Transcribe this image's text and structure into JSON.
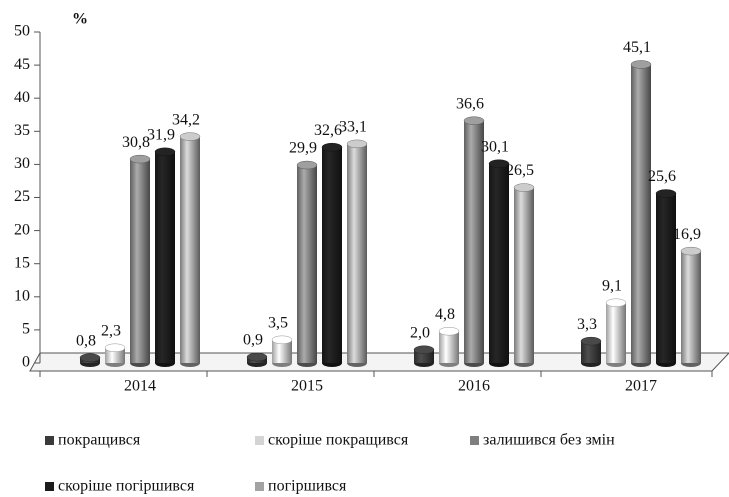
{
  "chart_data": {
    "type": "bar",
    "y_label": "%",
    "categories": [
      "2014",
      "2015",
      "2016",
      "2017"
    ],
    "series": [
      {
        "name": "покращився",
        "color": "#3a3a3a",
        "values": [
          0.8,
          0.9,
          2.0,
          3.3
        ],
        "value_labels": [
          "0,8",
          "0,9",
          "2,0",
          "3,3"
        ]
      },
      {
        "name": "скоріше покращився",
        "color": "#d4d4d4",
        "values": [
          2.3,
          3.5,
          4.8,
          9.1
        ],
        "value_labels": [
          "2,3",
          "3,5",
          "4,8",
          "9,1"
        ]
      },
      {
        "name": "залишився без змін",
        "color": "#7f7f7f",
        "values": [
          30.8,
          29.9,
          36.6,
          45.1
        ],
        "value_labels": [
          "30,8",
          "29,9",
          "36,6",
          "45,1"
        ]
      },
      {
        "name": "скоріше погіршився",
        "color": "#1c1c1c",
        "values": [
          31.9,
          32.6,
          30.1,
          25.6
        ],
        "value_labels": [
          "31,9",
          "32,6",
          "30,1",
          "25,6"
        ]
      },
      {
        "name": "погіршився",
        "color": "#a3a3a3",
        "values": [
          34.2,
          33.1,
          26.5,
          16.9
        ],
        "value_labels": [
          "34,2",
          "33,1",
          "26,5",
          "16,9"
        ]
      }
    ],
    "ylim": [
      0,
      50
    ],
    "yticks": [
      0,
      5,
      10,
      15,
      20,
      25,
      30,
      35,
      40,
      45,
      50
    ],
    "grid": false
  }
}
